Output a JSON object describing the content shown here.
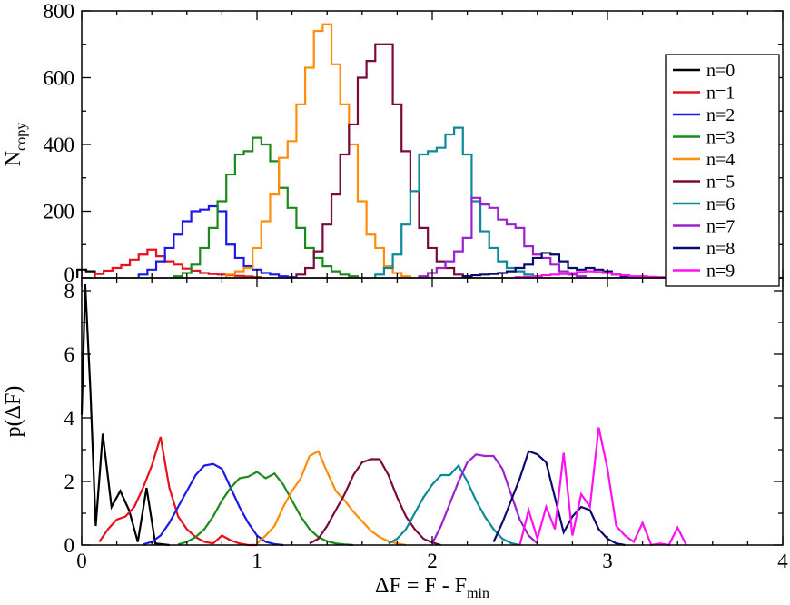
{
  "chart_data": [
    {
      "type": "line",
      "subtype": "step-histogram",
      "ylabel": "N",
      "ylabel_sub": "copy",
      "xlim": [
        0,
        4
      ],
      "ylim": [
        0,
        800
      ],
      "xticks": [
        0,
        1,
        2,
        3,
        4
      ],
      "yticks": [
        0,
        200,
        400,
        600,
        800
      ],
      "ytick_labels": [
        "0",
        "200",
        "400",
        "600",
        "800"
      ],
      "show_xtick_labels": false,
      "grid": false,
      "legend_position": "top-right",
      "series": [
        {
          "name": "n=0",
          "color": "#000000",
          "x": [
            0.0,
            0.05
          ],
          "values": [
            25,
            20
          ]
        },
        {
          "name": "n=1",
          "color": "#e8101a",
          "x": [
            0.1,
            0.15,
            0.2,
            0.25,
            0.3,
            0.35,
            0.4,
            0.45,
            0.5,
            0.55,
            0.6,
            0.65,
            0.7,
            0.75,
            0.8,
            0.85,
            0.9,
            0.95,
            1.0
          ],
          "values": [
            12,
            22,
            30,
            38,
            55,
            70,
            85,
            65,
            50,
            40,
            28,
            22,
            15,
            12,
            10,
            8,
            6,
            4,
            2
          ]
        },
        {
          "name": "n=2",
          "color": "#1a1ae6",
          "x": [
            0.35,
            0.4,
            0.45,
            0.5,
            0.55,
            0.6,
            0.65,
            0.7,
            0.75,
            0.8,
            0.85,
            0.9,
            0.95,
            1.0,
            1.05,
            1.1,
            1.15,
            1.2
          ],
          "values": [
            10,
            25,
            50,
            90,
            130,
            170,
            200,
            205,
            215,
            200,
            100,
            60,
            35,
            25,
            15,
            10,
            5,
            2
          ]
        },
        {
          "name": "n=3",
          "color": "#1a8a1a",
          "x": [
            0.55,
            0.6,
            0.65,
            0.7,
            0.75,
            0.8,
            0.85,
            0.9,
            0.95,
            1.0,
            1.05,
            1.1,
            1.15,
            1.2,
            1.25,
            1.3,
            1.35,
            1.4,
            1.45,
            1.5,
            1.55
          ],
          "values": [
            5,
            15,
            40,
            90,
            150,
            230,
            310,
            370,
            380,
            420,
            400,
            350,
            270,
            210,
            150,
            90,
            60,
            35,
            20,
            10,
            5
          ]
        },
        {
          "name": "n=4",
          "color": "#ff8c0a",
          "x": [
            0.85,
            0.9,
            0.95,
            1.0,
            1.05,
            1.1,
            1.15,
            1.2,
            1.25,
            1.3,
            1.35,
            1.4,
            1.45,
            1.5,
            1.55,
            1.6,
            1.65,
            1.7,
            1.75,
            1.8,
            1.85
          ],
          "values": [
            10,
            20,
            30,
            90,
            170,
            250,
            360,
            410,
            520,
            630,
            740,
            760,
            640,
            520,
            400,
            230,
            130,
            90,
            35,
            15,
            5
          ]
        },
        {
          "name": "n=5",
          "color": "#7a0a3c",
          "x": [
            1.25,
            1.3,
            1.35,
            1.4,
            1.45,
            1.5,
            1.55,
            1.6,
            1.65,
            1.7,
            1.75,
            1.8,
            1.85,
            1.9,
            1.95,
            2.0,
            2.05,
            2.1,
            2.15,
            2.2
          ],
          "values": [
            10,
            30,
            80,
            160,
            250,
            370,
            460,
            600,
            650,
            700,
            700,
            520,
            380,
            260,
            150,
            90,
            50,
            30,
            10,
            5
          ]
        },
        {
          "name": "n=6",
          "color": "#0a8a96",
          "x": [
            1.7,
            1.75,
            1.8,
            1.85,
            1.9,
            1.95,
            2.0,
            2.05,
            2.1,
            2.15,
            2.2,
            2.25,
            2.3,
            2.35,
            2.4,
            2.45,
            2.5,
            2.55,
            2.6
          ],
          "values": [
            10,
            30,
            70,
            160,
            260,
            370,
            380,
            390,
            430,
            450,
            370,
            230,
            140,
            90,
            50,
            30,
            20,
            10,
            5
          ]
        },
        {
          "name": "n=7",
          "color": "#9a20d0",
          "x": [
            1.95,
            2.0,
            2.05,
            2.1,
            2.15,
            2.2,
            2.25,
            2.3,
            2.35,
            2.4,
            2.45,
            2.5,
            2.55,
            2.6,
            2.65,
            2.7,
            2.75,
            2.8,
            2.85
          ],
          "values": [
            5,
            15,
            30,
            50,
            80,
            120,
            240,
            220,
            210,
            175,
            160,
            150,
            95,
            70,
            60,
            40,
            20,
            10,
            5
          ]
        },
        {
          "name": "n=8",
          "color": "#0a0a6e",
          "x": [
            2.2,
            2.25,
            2.3,
            2.35,
            2.4,
            2.45,
            2.5,
            2.55,
            2.6,
            2.65,
            2.7,
            2.75,
            2.8,
            2.85,
            2.9,
            2.95,
            3.0,
            3.05,
            3.1,
            3.15
          ],
          "values": [
            5,
            8,
            10,
            12,
            15,
            20,
            30,
            40,
            60,
            75,
            70,
            50,
            30,
            25,
            30,
            25,
            20,
            10,
            5,
            3
          ]
        },
        {
          "name": "n=9",
          "color": "#ff10f0",
          "x": [
            2.5,
            2.55,
            2.6,
            2.65,
            2.7,
            2.75,
            2.8,
            2.85,
            2.9,
            2.95,
            3.0,
            3.05,
            3.1,
            3.15,
            3.2,
            3.25,
            3.3,
            3.35,
            3.4,
            3.45
          ],
          "values": [
            2,
            3,
            5,
            8,
            10,
            12,
            15,
            18,
            20,
            18,
            15,
            10,
            8,
            5,
            5,
            3,
            2,
            2,
            1,
            1
          ]
        }
      ]
    },
    {
      "type": "line",
      "xlabel": "ΔF = F - F",
      "xlabel_sub": "min",
      "ylabel": "p(ΔF)",
      "xlim": [
        0,
        4
      ],
      "ylim": [
        0,
        8.4
      ],
      "xticks": [
        0,
        1,
        2,
        3,
        4
      ],
      "xtick_labels": [
        "0",
        "1",
        "2",
        "3",
        "4"
      ],
      "yticks": [
        0,
        2,
        4,
        6,
        8
      ],
      "ytick_labels": [
        "0",
        "2",
        "4",
        "6",
        "8"
      ],
      "grid": false,
      "series": [
        {
          "name": "n=0",
          "color": "#000000",
          "x": [
            0.0,
            0.02,
            0.05,
            0.08,
            0.12,
            0.17,
            0.22,
            0.27,
            0.32,
            0.37,
            0.42,
            0.5
          ],
          "values": [
            4.1,
            8.2,
            4.8,
            0.6,
            3.5,
            1.2,
            1.7,
            1.1,
            0.1,
            1.8,
            0.05,
            0.0
          ]
        },
        {
          "name": "n=1",
          "color": "#e8101a",
          "x": [
            0.1,
            0.15,
            0.2,
            0.25,
            0.3,
            0.35,
            0.4,
            0.45,
            0.5,
            0.55,
            0.6,
            0.65,
            0.7,
            0.75,
            0.8,
            0.85,
            0.9,
            0.95,
            1.0
          ],
          "values": [
            0.1,
            0.5,
            0.8,
            0.9,
            1.2,
            1.8,
            2.5,
            3.4,
            1.8,
            0.9,
            0.5,
            0.25,
            0.1,
            0.05,
            0.3,
            0.15,
            0.05,
            0.0,
            0.0
          ]
        },
        {
          "name": "n=2",
          "color": "#1a1ae6",
          "x": [
            0.35,
            0.4,
            0.45,
            0.5,
            0.55,
            0.6,
            0.65,
            0.7,
            0.75,
            0.8,
            0.85,
            0.9,
            0.95,
            1.0,
            1.05,
            1.1,
            1.15
          ],
          "values": [
            0.02,
            0.1,
            0.3,
            0.7,
            1.2,
            1.7,
            2.2,
            2.5,
            2.55,
            2.4,
            1.8,
            1.2,
            0.7,
            0.3,
            0.1,
            0.03,
            0.0
          ]
        },
        {
          "name": "n=3",
          "color": "#1a8a1a",
          "x": [
            0.55,
            0.6,
            0.65,
            0.7,
            0.75,
            0.8,
            0.85,
            0.9,
            0.95,
            1.0,
            1.05,
            1.1,
            1.15,
            1.2,
            1.25,
            1.3,
            1.35,
            1.4,
            1.45,
            1.5,
            1.55
          ],
          "values": [
            0.02,
            0.1,
            0.25,
            0.5,
            0.9,
            1.4,
            1.8,
            2.1,
            2.15,
            2.3,
            2.1,
            2.25,
            1.9,
            1.4,
            0.9,
            0.5,
            0.25,
            0.12,
            0.05,
            0.02,
            0.0
          ]
        },
        {
          "name": "n=4",
          "color": "#ff8c0a",
          "x": [
            1.0,
            1.05,
            1.1,
            1.15,
            1.2,
            1.25,
            1.3,
            1.35,
            1.4,
            1.45,
            1.5,
            1.55,
            1.6,
            1.65,
            1.7,
            1.75,
            1.8,
            1.85
          ],
          "values": [
            0.05,
            0.3,
            0.6,
            1.2,
            1.7,
            2.1,
            2.8,
            2.95,
            2.3,
            1.7,
            1.4,
            1.05,
            0.75,
            0.45,
            0.25,
            0.12,
            0.05,
            0.0
          ]
        },
        {
          "name": "n=5",
          "color": "#7a0a3c",
          "x": [
            1.3,
            1.35,
            1.4,
            1.45,
            1.5,
            1.55,
            1.6,
            1.65,
            1.7,
            1.75,
            1.8,
            1.85,
            1.9,
            1.95,
            2.0,
            2.05
          ],
          "values": [
            0.05,
            0.2,
            0.6,
            1.1,
            1.6,
            2.2,
            2.6,
            2.7,
            2.7,
            2.2,
            1.5,
            0.9,
            0.5,
            0.2,
            0.08,
            0.0
          ]
        },
        {
          "name": "n=6",
          "color": "#0a8a96",
          "x": [
            1.75,
            1.8,
            1.85,
            1.9,
            1.95,
            2.0,
            2.05,
            2.1,
            2.15,
            2.2,
            2.25,
            2.3,
            2.35,
            2.4,
            2.45,
            2.5
          ],
          "values": [
            0.05,
            0.2,
            0.5,
            1.0,
            1.5,
            1.9,
            2.2,
            2.2,
            2.5,
            2.0,
            1.4,
            0.9,
            0.5,
            0.2,
            0.06,
            0.0
          ]
        },
        {
          "name": "n=7",
          "color": "#9a20d0",
          "x": [
            2.0,
            2.05,
            2.1,
            2.15,
            2.2,
            2.25,
            2.3,
            2.35,
            2.4,
            2.45,
            2.5,
            2.55,
            2.6
          ],
          "values": [
            0.05,
            0.6,
            1.3,
            2.0,
            2.6,
            2.85,
            2.8,
            2.8,
            2.4,
            1.6,
            0.8,
            0.3,
            0.05
          ]
        },
        {
          "name": "n=8",
          "color": "#0a0a6e",
          "x": [
            2.35,
            2.4,
            2.45,
            2.5,
            2.55,
            2.6,
            2.65,
            2.7,
            2.75,
            2.8,
            2.85,
            2.9,
            2.95,
            3.0,
            3.05,
            3.1
          ],
          "values": [
            0.1,
            0.7,
            1.4,
            2.1,
            2.95,
            2.85,
            2.6,
            1.5,
            0.4,
            0.9,
            1.2,
            1.1,
            0.5,
            0.2,
            0.05,
            0.0
          ]
        },
        {
          "name": "n=9",
          "color": "#ff10f0",
          "x": [
            2.5,
            2.55,
            2.6,
            2.65,
            2.7,
            2.75,
            2.8,
            2.85,
            2.9,
            2.95,
            3.0,
            3.05,
            3.1,
            3.15,
            3.2,
            3.25,
            3.3,
            3.35,
            3.4,
            3.45
          ],
          "values": [
            0.0,
            1.1,
            0.2,
            1.2,
            0.5,
            2.9,
            0.3,
            1.6,
            1.2,
            3.7,
            2.4,
            0.6,
            0.3,
            0.1,
            0.7,
            0.0,
            0.05,
            0.0,
            0.55,
            0.0
          ]
        }
      ]
    }
  ]
}
